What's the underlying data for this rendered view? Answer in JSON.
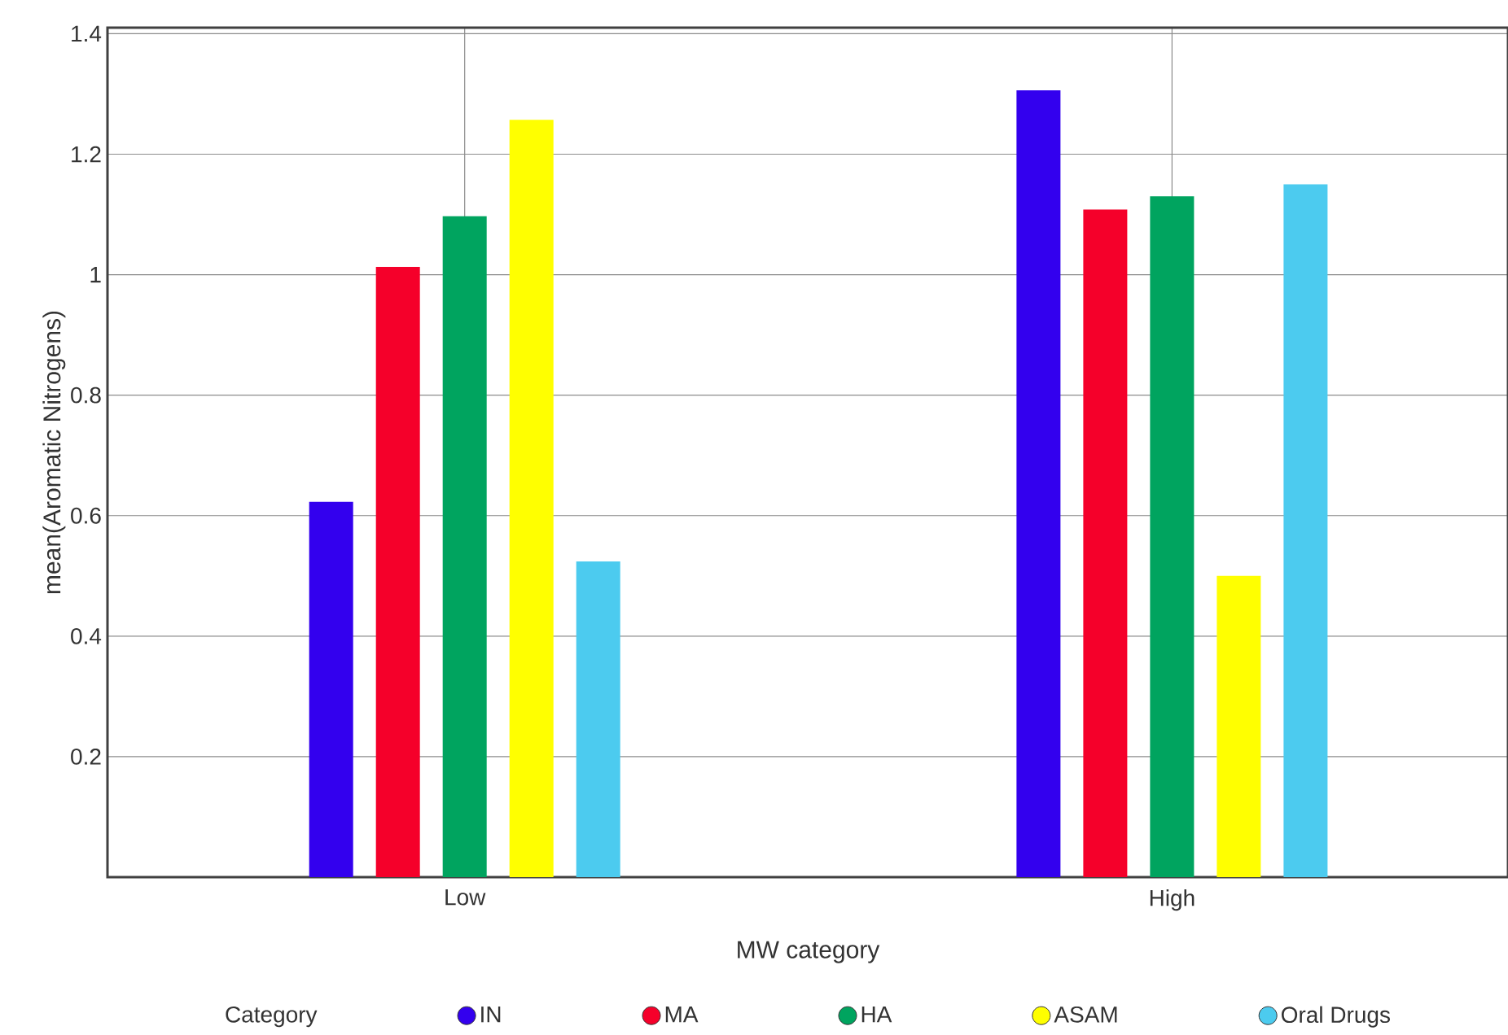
{
  "chart_data": {
    "type": "bar",
    "xlabel": "MW category",
    "ylabel": "mean(Aromatic Nitrogens)",
    "legend_title": "Category",
    "categories": [
      "Low",
      "High"
    ],
    "series": [
      {
        "name": "IN",
        "color": "#3300ee",
        "values": [
          0.623,
          1.306
        ]
      },
      {
        "name": "MA",
        "color": "#f5002a",
        "values": [
          1.013,
          1.108
        ]
      },
      {
        "name": "HA",
        "color": "#00a45f",
        "values": [
          1.097,
          1.13
        ]
      },
      {
        "name": "ASAM",
        "color": "#ffff00",
        "values": [
          1.257,
          0.5
        ]
      },
      {
        "name": "Oral Drugs",
        "color": "#4ccbef",
        "values": [
          0.524,
          1.15
        ]
      }
    ],
    "ylim": [
      0,
      1.41
    ],
    "yticks": [
      0.2,
      0.4,
      0.6,
      0.8,
      1,
      1.2,
      1.4
    ],
    "grid": true,
    "legend": "bottom"
  }
}
